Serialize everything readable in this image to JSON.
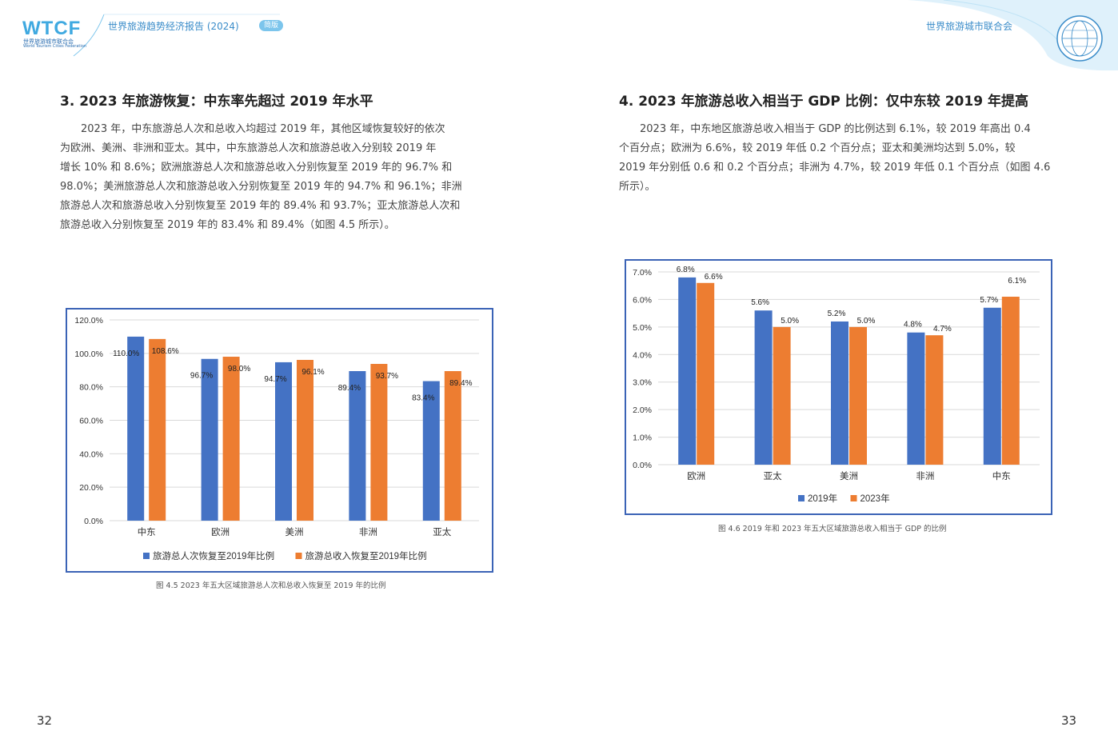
{
  "header": {
    "logo_text": "WTCF",
    "logo_sub_cn": "世界旅游城市联合会",
    "logo_sub_en": "World Tourism Cities Federation",
    "report_title": "世界旅游趋势经济报告 (2024)",
    "edition": "简版",
    "org_name": "世界旅游城市联合会"
  },
  "left": {
    "heading": "3. 2023 年旅游恢复：中东率先超过 2019 年水平",
    "paragraph_lines": [
      "　　2023 年，中东旅游总人次和总收入均超过 2019 年，其他区域恢复较好的依次",
      "为欧洲、美洲、非洲和亚太。其中，中东旅游总人次和旅游总收入分别较 2019 年",
      "增长 10% 和 8.6%；欧洲旅游总人次和旅游总收入分别恢复至 2019 年的 96.7% 和",
      "98.0%；美洲旅游总人次和旅游总收入分别恢复至 2019 年的 94.7% 和 96.1%；非洲",
      "旅游总人次和旅游总收入分别恢复至 2019 年的 89.4% 和 93.7%；亚太旅游总人次和",
      "旅游总收入分别恢复至 2019 年的 83.4% 和 89.4%（如图 4.5 所示）。"
    ],
    "caption": "图 4.5  2023 年五大区域旅游总人次和总收入恢复至 2019 年的比例",
    "page_number": "32"
  },
  "right": {
    "heading": "4. 2023 年旅游总收入相当于 GDP 比例：仅中东较 2019 年提高",
    "paragraph_lines": [
      "　　2023 年，中东地区旅游总收入相当于 GDP 的比例达到 6.1%，较 2019 年高出 0.4",
      "个百分点；欧洲为 6.6%，较 2019 年低 0.2 个百分点；亚太和美洲均达到 5.0%，较",
      "2019 年分别低 0.6 和 0.2 个百分点；非洲为 4.7%，较 2019 年低 0.1 个百分点（如图 4.6",
      "所示）。"
    ],
    "caption": "图 4.6  2019 年和 2023 年五大区域旅游总收入相当于 GDP 的比例",
    "page_number": "33"
  },
  "chart_data": [
    {
      "type": "bar",
      "categories": [
        "中东",
        "欧洲",
        "美洲",
        "非洲",
        "亚太"
      ],
      "series": [
        {
          "name": "旅游总人次恢复至2019年比例",
          "values": [
            110.0,
            96.7,
            94.7,
            89.4,
            83.4
          ],
          "labels": [
            "110.0%",
            "96.7%",
            "94.7%",
            "89.4%",
            "83.4%"
          ],
          "color": "#4472c4"
        },
        {
          "name": "旅游总收入恢复至2019年比例",
          "values": [
            108.6,
            98.0,
            96.1,
            93.7,
            89.4
          ],
          "labels": [
            "108.6%",
            "98.0%",
            "96.1%",
            "93.7%",
            "89.4%"
          ],
          "color": "#ed7d31"
        }
      ],
      "yticks": [
        "0.0%",
        "20.0%",
        "40.0%",
        "60.0%",
        "80.0%",
        "100.0%",
        "120.0%"
      ],
      "ylim": [
        0,
        120
      ],
      "grid": true,
      "legend": "bottom"
    },
    {
      "type": "bar",
      "categories": [
        "欧洲",
        "亚太",
        "美洲",
        "非洲",
        "中东"
      ],
      "series": [
        {
          "name": "2019年",
          "values": [
            6.8,
            5.6,
            5.2,
            4.8,
            5.7
          ],
          "labels": [
            "6.8%",
            "5.6%",
            "5.2%",
            "4.8%",
            "5.7%"
          ],
          "color": "#4472c4"
        },
        {
          "name": "2023年",
          "values": [
            6.6,
            5.0,
            5.0,
            4.7,
            6.1
          ],
          "labels": [
            "6.6%",
            "5.0%",
            "5.0%",
            "4.7%",
            "6.1%"
          ],
          "color": "#ed7d31"
        }
      ],
      "yticks": [
        "0.0%",
        "1.0%",
        "2.0%",
        "3.0%",
        "4.0%",
        "5.0%",
        "6.0%",
        "7.0%"
      ],
      "ylim": [
        0,
        7
      ],
      "grid": true,
      "legend": "bottom"
    }
  ]
}
